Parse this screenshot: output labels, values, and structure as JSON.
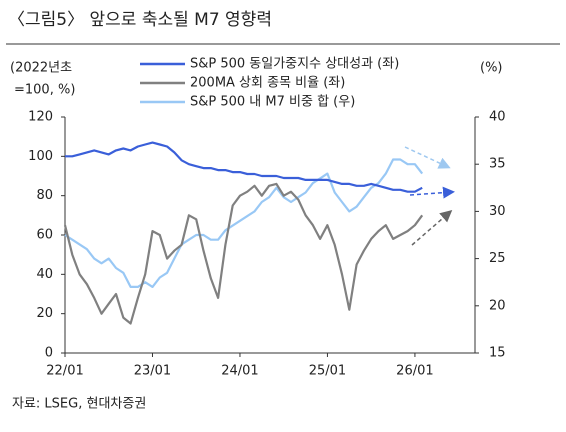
{
  "chart_data": {
    "type": "line",
    "title": "〈그림5〉 앞으로 축소될 M7 영향력",
    "y_label": [
      "(2022년초",
      "=100, %)"
    ],
    "y2_label": "(%)",
    "source": "자료: LSEG, 현대차증권",
    "x": [
      "22/01",
      "22/02",
      "22/03",
      "22/04",
      "22/05",
      "22/06",
      "22/07",
      "22/08",
      "22/09",
      "22/10",
      "22/11",
      "22/12",
      "23/01",
      "23/02",
      "23/03",
      "23/04",
      "23/05",
      "23/06",
      "23/07",
      "23/08",
      "23/09",
      "23/10",
      "23/11",
      "23/12",
      "24/01",
      "24/02",
      "24/03",
      "24/04",
      "24/05",
      "24/06",
      "24/07",
      "24/08",
      "24/09",
      "24/10",
      "24/11",
      "24/12",
      "25/01",
      "25/02",
      "25/03",
      "25/04",
      "25/05",
      "25/06",
      "25/07",
      "25/08",
      "25/09",
      "25/10",
      "25/11",
      "25/12",
      "26/01",
      "26/02"
    ],
    "xticks": [
      "22/01",
      "23/01",
      "24/01",
      "25/01",
      "26/01"
    ],
    "ylim": [
      0,
      120
    ],
    "yticks": [
      0,
      20,
      40,
      60,
      80,
      100,
      120
    ],
    "y2lim": [
      15,
      40
    ],
    "y2ticks": [
      15,
      20,
      25,
      30,
      35,
      40
    ],
    "series": [
      {
        "name": "S&P 500 동일가중지수 상대성과 (좌)",
        "color": "#3a5fd9",
        "values": [
          100,
          100,
          101,
          102,
          103,
          102,
          101,
          103,
          104,
          103,
          105,
          106,
          107,
          106,
          105,
          102,
          98,
          96,
          95,
          94,
          94,
          93,
          93,
          92,
          92,
          91,
          91,
          90,
          90,
          90,
          89,
          89,
          89,
          88,
          88,
          88,
          88,
          87,
          86,
          86,
          85,
          85,
          86,
          85,
          84,
          83,
          83,
          82,
          82,
          84
        ]
      },
      {
        "name": "200MA 상회 종목 비율 (좌)",
        "color": "#808080",
        "values": [
          65,
          50,
          40,
          35,
          28,
          20,
          25,
          30,
          18,
          15,
          28,
          40,
          62,
          60,
          48,
          52,
          55,
          70,
          68,
          52,
          38,
          28,
          55,
          75,
          80,
          82,
          85,
          80,
          85,
          86,
          80,
          82,
          78,
          70,
          65,
          58,
          65,
          55,
          40,
          22,
          45,
          52,
          58,
          62,
          65,
          58,
          60,
          62,
          65,
          70
        ]
      },
      {
        "name": "S&P 500 내 M7 비중 합 (우)",
        "color": "#99c8f5",
        "axis": "y2",
        "values": [
          27.5,
          27,
          26.5,
          26,
          25,
          24.5,
          25,
          24,
          23.5,
          22,
          22,
          22.5,
          22,
          23,
          23.5,
          25,
          26.5,
          27,
          27.5,
          27.5,
          27,
          27,
          28,
          28.5,
          29,
          29.5,
          30,
          31,
          31.5,
          32.5,
          31.5,
          31,
          31.5,
          32,
          33,
          33.5,
          34,
          32,
          31,
          30,
          30.5,
          31.5,
          32.5,
          33,
          34,
          35.5,
          35.5,
          35,
          35,
          34
        ]
      }
    ]
  }
}
